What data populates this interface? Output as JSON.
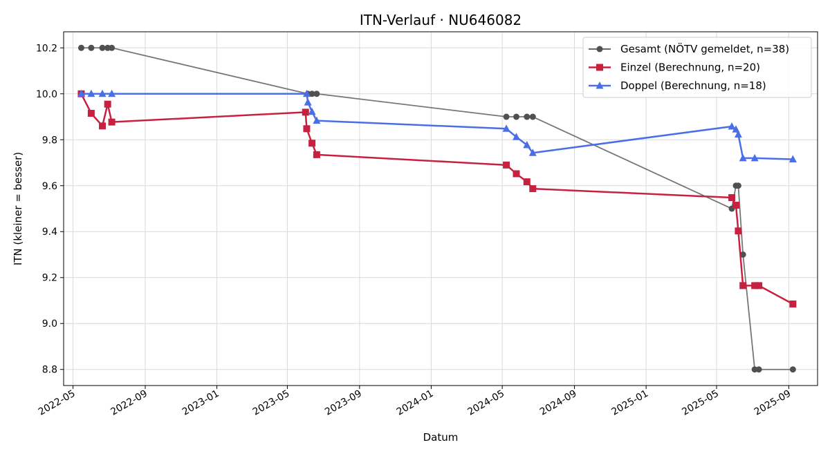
{
  "chart_data": {
    "type": "line",
    "title": "ITN-Verlauf · NU646082",
    "xlabel": "Datum",
    "ylabel": "ITN  (kleiner = besser)",
    "x_axis": "date",
    "xlim": [
      "2022-04-15",
      "2025-10-20"
    ],
    "ylim": [
      8.73,
      10.27
    ],
    "x_ticks": [
      "2022-05",
      "2022-09",
      "2023-01",
      "2023-05",
      "2023-09",
      "2024-01",
      "2024-05",
      "2024-09",
      "2025-01",
      "2025-05",
      "2025-09"
    ],
    "y_ticks": [
      "8.8",
      "9.0",
      "9.2",
      "9.4",
      "9.6",
      "9.8",
      "10.0",
      "10.2"
    ],
    "grid": true,
    "legend_position": "top-right",
    "series": [
      {
        "name": "Gesamt (NÖTV gemeldet, n=38)",
        "color": "#505050",
        "marker": "circle",
        "points": [
          [
            "2022-05-15",
            10.2
          ],
          [
            "2022-06-01",
            10.2
          ],
          [
            "2022-06-20",
            10.2
          ],
          [
            "2022-06-29",
            10.2
          ],
          [
            "2022-07-06",
            10.2
          ],
          [
            "2023-06-05",
            10.0
          ],
          [
            "2023-06-12",
            10.0
          ],
          [
            "2023-06-20",
            10.0
          ],
          [
            "2024-05-08",
            9.9
          ],
          [
            "2024-05-25",
            9.9
          ],
          [
            "2024-06-12",
            9.9
          ],
          [
            "2024-06-22",
            9.9
          ],
          [
            "2025-05-27",
            9.5
          ],
          [
            "2025-06-03",
            9.6
          ],
          [
            "2025-06-07",
            9.6
          ],
          [
            "2025-06-15",
            9.3
          ],
          [
            "2025-07-05",
            8.8
          ],
          [
            "2025-07-12",
            8.8
          ],
          [
            "2025-09-08",
            8.8
          ]
        ]
      },
      {
        "name": "Einzel (Berechnung, n=20)",
        "color": "#c8213f",
        "marker": "square",
        "points": [
          [
            "2022-05-15",
            10.0
          ],
          [
            "2022-06-01",
            9.915
          ],
          [
            "2022-06-20",
            9.86
          ],
          [
            "2022-06-29",
            9.955
          ],
          [
            "2022-07-06",
            9.877
          ],
          [
            "2023-06-01",
            9.92
          ],
          [
            "2023-06-03",
            9.848
          ],
          [
            "2023-06-12",
            9.785
          ],
          [
            "2023-06-20",
            9.735
          ],
          [
            "2024-05-08",
            9.69
          ],
          [
            "2024-05-25",
            9.652
          ],
          [
            "2024-06-12",
            9.617
          ],
          [
            "2024-06-22",
            9.587
          ],
          [
            "2025-05-27",
            9.548
          ],
          [
            "2025-06-03",
            9.515
          ],
          [
            "2025-06-07",
            9.403
          ],
          [
            "2025-06-15",
            9.165
          ],
          [
            "2025-07-05",
            9.165
          ],
          [
            "2025-07-12",
            9.165
          ],
          [
            "2025-09-08",
            9.085
          ]
        ]
      },
      {
        "name": "Doppel (Berechnung, n=18)",
        "color": "#4a6ee8",
        "marker": "triangle",
        "points": [
          [
            "2022-05-15",
            10.0
          ],
          [
            "2022-06-01",
            10.0
          ],
          [
            "2022-06-20",
            10.0
          ],
          [
            "2022-07-06",
            10.0
          ],
          [
            "2023-06-03",
            10.0
          ],
          [
            "2023-06-05",
            9.963
          ],
          [
            "2023-06-12",
            9.922
          ],
          [
            "2023-06-20",
            9.883
          ],
          [
            "2024-05-08",
            9.848
          ],
          [
            "2024-05-25",
            9.812
          ],
          [
            "2024-06-12",
            9.777
          ],
          [
            "2024-06-22",
            9.743
          ],
          [
            "2025-05-27",
            9.858
          ],
          [
            "2025-06-03",
            9.845
          ],
          [
            "2025-06-07",
            9.823
          ],
          [
            "2025-06-15",
            9.72
          ],
          [
            "2025-07-05",
            9.72
          ],
          [
            "2025-09-08",
            9.715
          ]
        ]
      }
    ]
  }
}
